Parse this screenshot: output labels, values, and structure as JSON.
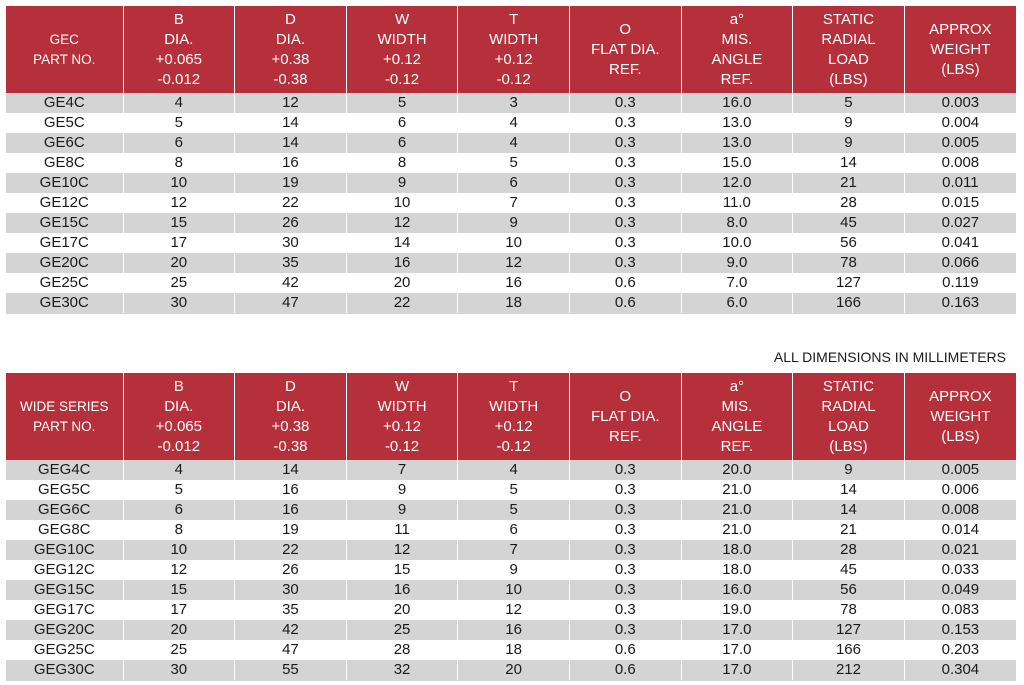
{
  "headers": [
    [
      "B",
      "DIA.",
      "+0.065",
      "-0.012"
    ],
    [
      "D",
      "DIA.",
      "+0.38",
      "-0.38"
    ],
    [
      "W",
      "WIDTH",
      "+0.12",
      "-0.12"
    ],
    [
      "T",
      "WIDTH",
      "+0.12",
      "-0.12"
    ],
    [
      "O",
      "FLAT DIA.",
      "REF."
    ],
    [
      "a°",
      "MIS.",
      "ANGLE",
      "REF."
    ],
    [
      "STATIC",
      "RADIAL",
      "LOAD",
      "(LBS)"
    ],
    [
      "APPROX",
      "WEIGHT",
      "(LBS)"
    ]
  ],
  "tables": [
    {
      "part_header": [
        "GEC",
        "PART NO."
      ],
      "rows": [
        [
          "GE4C",
          "4",
          "12",
          "5",
          "3",
          "0.3",
          "16.0",
          "5",
          "0.003"
        ],
        [
          "GE5C",
          "5",
          "14",
          "6",
          "4",
          "0.3",
          "13.0",
          "9",
          "0.004"
        ],
        [
          "GE6C",
          "6",
          "14",
          "6",
          "4",
          "0.3",
          "13.0",
          "9",
          "0.005"
        ],
        [
          "GE8C",
          "8",
          "16",
          "8",
          "5",
          "0.3",
          "15.0",
          "14",
          "0.008"
        ],
        [
          "GE10C",
          "10",
          "19",
          "9",
          "6",
          "0.3",
          "12.0",
          "21",
          "0.011"
        ],
        [
          "GE12C",
          "12",
          "22",
          "10",
          "7",
          "0.3",
          "11.0",
          "28",
          "0.015"
        ],
        [
          "GE15C",
          "15",
          "26",
          "12",
          "9",
          "0.3",
          "8.0",
          "45",
          "0.027"
        ],
        [
          "GE17C",
          "17",
          "30",
          "14",
          "10",
          "0.3",
          "10.0",
          "56",
          "0.041"
        ],
        [
          "GE20C",
          "20",
          "35",
          "16",
          "12",
          "0.3",
          "9.0",
          "78",
          "0.066"
        ],
        [
          "GE25C",
          "25",
          "42",
          "20",
          "16",
          "0.6",
          "7.0",
          "127",
          "0.119"
        ],
        [
          "GE30C",
          "30",
          "47",
          "22",
          "18",
          "0.6",
          "6.0",
          "166",
          "0.163"
        ]
      ]
    },
    {
      "part_header": [
        "WIDE SERIES",
        "PART NO."
      ],
      "rows": [
        [
          "GEG4C",
          "4",
          "14",
          "7",
          "4",
          "0.3",
          "20.0",
          "9",
          "0.005"
        ],
        [
          "GEG5C",
          "5",
          "16",
          "9",
          "5",
          "0.3",
          "21.0",
          "14",
          "0.006"
        ],
        [
          "GEG6C",
          "6",
          "16",
          "9",
          "5",
          "0.3",
          "21.0",
          "14",
          "0.008"
        ],
        [
          "GEG8C",
          "8",
          "19",
          "11",
          "6",
          "0.3",
          "21.0",
          "21",
          "0.014"
        ],
        [
          "GEG10C",
          "10",
          "22",
          "12",
          "7",
          "0.3",
          "18.0",
          "28",
          "0.021"
        ],
        [
          "GEG12C",
          "12",
          "26",
          "15",
          "9",
          "0.3",
          "18.0",
          "45",
          "0.033"
        ],
        [
          "GEG15C",
          "15",
          "30",
          "16",
          "10",
          "0.3",
          "16.0",
          "56",
          "0.049"
        ],
        [
          "GEG17C",
          "17",
          "35",
          "20",
          "12",
          "0.3",
          "19.0",
          "78",
          "0.083"
        ],
        [
          "GEG20C",
          "20",
          "42",
          "25",
          "16",
          "0.3",
          "17.0",
          "127",
          "0.153"
        ],
        [
          "GEG25C",
          "25",
          "47",
          "28",
          "18",
          "0.6",
          "17.0",
          "166",
          "0.203"
        ],
        [
          "GEG30C",
          "30",
          "55",
          "32",
          "20",
          "0.6",
          "17.0",
          "212",
          "0.304"
        ]
      ]
    }
  ],
  "note": "ALL DIMENSIONS IN MILLIMETERS",
  "colors": {
    "header_bg": "#b5303a",
    "header_text": "#ffffff",
    "stripe": "#d4d4d4"
  }
}
